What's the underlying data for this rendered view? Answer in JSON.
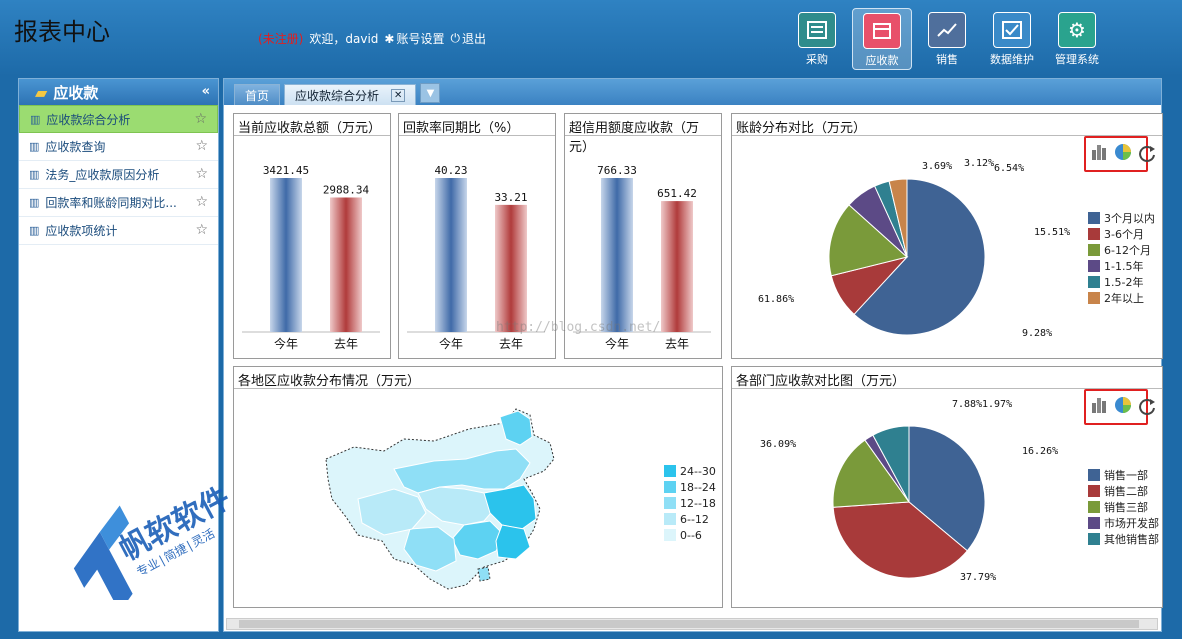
{
  "app": {
    "title": "报表中心"
  },
  "user": {
    "unregistered": "(未注册)",
    "welcome": "欢迎，david",
    "settings": "账号设置",
    "logout": "退出"
  },
  "toolbar": [
    {
      "label": "采购",
      "icon": "purchase-icon"
    },
    {
      "label": "应收款",
      "icon": "receivable-icon",
      "active": true
    },
    {
      "label": "销售",
      "icon": "sales-icon"
    },
    {
      "label": "数据维护",
      "icon": "data-maintain-icon"
    },
    {
      "label": "管理系统",
      "icon": "gear-icon"
    }
  ],
  "sidebar": {
    "title": "应收款",
    "items": [
      {
        "label": "应收款综合分析",
        "selected": true
      },
      {
        "label": "应收款查询"
      },
      {
        "label": "法务_应收款原因分析"
      },
      {
        "label": "回款率和账龄同期对比..."
      },
      {
        "label": "应收款项统计"
      }
    ]
  },
  "tabs": {
    "home": "首页",
    "current": "应收款综合分析"
  },
  "panels": {
    "p1": "当前应收款总额（万元）",
    "p2": "回款率同期比（%）",
    "p3": "超信用额度应收款（万元）",
    "p4": "账龄分布对比（万元）",
    "p5": "各地区应收款分布情况（万元）",
    "p6": "各部门应收款对比图（万元）"
  },
  "watermark": "http://blog.csdn.net/",
  "logo": {
    "name": "帆软软件",
    "slogan": "专业|简捷|灵活"
  },
  "chart_data": [
    {
      "type": "bar",
      "title": "当前应收款总额（万元）",
      "categories": [
        "今年",
        "去年"
      ],
      "values": [
        3421.45,
        2988.34
      ],
      "value_labels": [
        "3421.45",
        "2988.34"
      ]
    },
    {
      "type": "bar",
      "title": "回款率同期比（%）",
      "categories": [
        "今年",
        "去年"
      ],
      "values": [
        40.23,
        33.21
      ],
      "value_labels": [
        "40.23",
        "33.21"
      ]
    },
    {
      "type": "bar",
      "title": "超信用额度应收款（万元）",
      "categories": [
        "今年",
        "去年"
      ],
      "values": [
        766.33,
        651.42
      ],
      "value_labels": [
        "766.33",
        "651.42"
      ]
    },
    {
      "type": "pie",
      "title": "账龄分布对比（万元）",
      "labels": [
        "3个月以内",
        "3-6个月",
        "6-12个月",
        "1-1.5年",
        "1.5-2年",
        "2年以上"
      ],
      "values": [
        61.86,
        9.28,
        15.51,
        6.54,
        3.12,
        3.69
      ],
      "value_labels": [
        "61.86%",
        "9.28%",
        "15.51%",
        "6.54%",
        "3.12%",
        "3.69%"
      ],
      "colors": [
        "#3f6394",
        "#a83a3a",
        "#7a9a3a",
        "#5c4a86",
        "#2f8090",
        "#c8844a"
      ]
    },
    {
      "type": "heatmap",
      "title": "各地区应收款分布情况（万元）",
      "legend": [
        "24--30",
        "18--24",
        "12--18",
        "6--12",
        "0--6"
      ],
      "colors": [
        "#2bc3ec",
        "#5dd2f2",
        "#8fdff6",
        "#b8eaf8",
        "#dcf5fb"
      ]
    },
    {
      "type": "pie",
      "title": "各部门应收款对比图（万元）",
      "labels": [
        "销售一部",
        "销售二部",
        "销售三部",
        "市场开发部",
        "其他销售部"
      ],
      "values": [
        36.09,
        37.79,
        16.26,
        1.97,
        7.88
      ],
      "value_labels": [
        "36.09%",
        "37.79%",
        "16.26%",
        "1.97%",
        "7.88%"
      ],
      "colors": [
        "#3f6394",
        "#a83a3a",
        "#7a9a3a",
        "#5c4a86",
        "#2f8090"
      ]
    }
  ]
}
